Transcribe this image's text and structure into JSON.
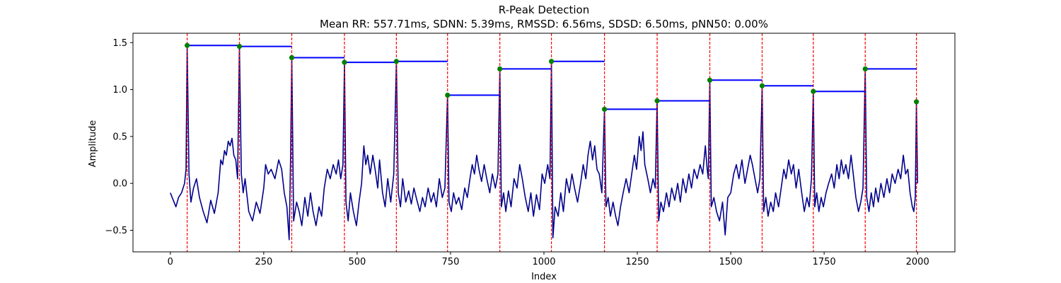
{
  "chart_data": {
    "type": "line",
    "title": "R-Peak Detection",
    "subtitle": "Mean RR: 557.71ms, SDNN: 5.39ms, RMSSD: 6.56ms, SDSD: 6.50ms, pNN50: 0.00%",
    "xlabel": "Index",
    "ylabel": "Amplitude",
    "xlim": [
      -100,
      2100
    ],
    "ylim": [
      -0.73,
      1.6
    ],
    "xticks": [
      0,
      250,
      500,
      750,
      1000,
      1250,
      1500,
      1750,
      2000
    ],
    "yticks": [
      -0.5,
      0.0,
      0.5,
      1.0,
      1.5
    ],
    "ytick_labels": [
      "−0.5",
      "0.0",
      "0.5",
      "1.0",
      "1.5"
    ],
    "grid": false,
    "colors": {
      "signal": "#00008b",
      "peak_lines": "#ff0000",
      "peak_markers": "#008000",
      "rr_segments": "#0000ff"
    },
    "peaks": {
      "x": [
        45,
        185,
        325,
        466,
        605,
        742,
        882,
        1020,
        1162,
        1303,
        1444,
        1584,
        1721,
        1860,
        1997
      ],
      "y": [
        1.47,
        1.46,
        1.34,
        1.29,
        1.3,
        0.94,
        1.22,
        1.3,
        0.79,
        0.88,
        1.1,
        1.04,
        0.98,
        1.22,
        0.87
      ]
    },
    "signal": [
      [
        0,
        -0.1
      ],
      [
        8,
        -0.18
      ],
      [
        15,
        -0.25
      ],
      [
        22,
        -0.15
      ],
      [
        30,
        -0.1
      ],
      [
        38,
        0.0
      ],
      [
        42,
        0.15
      ],
      [
        45,
        1.47
      ],
      [
        50,
        0.1
      ],
      [
        55,
        -0.2
      ],
      [
        62,
        -0.05
      ],
      [
        70,
        0.05
      ],
      [
        78,
        -0.15
      ],
      [
        88,
        -0.3
      ],
      [
        98,
        -0.42
      ],
      [
        108,
        -0.18
      ],
      [
        118,
        -0.32
      ],
      [
        128,
        -0.1
      ],
      [
        135,
        0.25
      ],
      [
        140,
        0.2
      ],
      [
        145,
        0.35
      ],
      [
        150,
        0.3
      ],
      [
        155,
        0.45
      ],
      [
        160,
        0.4
      ],
      [
        165,
        0.48
      ],
      [
        170,
        0.3
      ],
      [
        175,
        0.25
      ],
      [
        180,
        0.05
      ],
      [
        185,
        1.46
      ],
      [
        190,
        0.1
      ],
      [
        195,
        -0.1
      ],
      [
        200,
        0.05
      ],
      [
        210,
        -0.3
      ],
      [
        220,
        -0.4
      ],
      [
        230,
        -0.2
      ],
      [
        240,
        -0.32
      ],
      [
        250,
        -0.05
      ],
      [
        255,
        0.2
      ],
      [
        262,
        0.1
      ],
      [
        270,
        0.15
      ],
      [
        280,
        0.05
      ],
      [
        290,
        0.25
      ],
      [
        298,
        0.15
      ],
      [
        305,
        -0.1
      ],
      [
        312,
        -0.25
      ],
      [
        318,
        -0.6
      ],
      [
        322,
        0.3
      ],
      [
        325,
        1.34
      ],
      [
        330,
        -0.4
      ],
      [
        338,
        -0.2
      ],
      [
        345,
        -0.3
      ],
      [
        352,
        -0.45
      ],
      [
        360,
        -0.15
      ],
      [
        368,
        -0.35
      ],
      [
        375,
        -0.1
      ],
      [
        382,
        -0.3
      ],
      [
        390,
        -0.45
      ],
      [
        398,
        -0.25
      ],
      [
        405,
        -0.35
      ],
      [
        412,
        -0.05
      ],
      [
        420,
        0.15
      ],
      [
        428,
        0.05
      ],
      [
        436,
        0.2
      ],
      [
        444,
        0.1
      ],
      [
        450,
        0.25
      ],
      [
        456,
        0.05
      ],
      [
        462,
        0.2
      ],
      [
        466,
        1.29
      ],
      [
        470,
        -0.2
      ],
      [
        476,
        -0.4
      ],
      [
        482,
        -0.1
      ],
      [
        490,
        -0.3
      ],
      [
        498,
        -0.45
      ],
      [
        505,
        -0.2
      ],
      [
        512,
        0.0
      ],
      [
        518,
        0.4
      ],
      [
        523,
        0.2
      ],
      [
        528,
        0.3
      ],
      [
        535,
        0.1
      ],
      [
        542,
        0.3
      ],
      [
        548,
        0.15
      ],
      [
        555,
        -0.05
      ],
      [
        560,
        0.25
      ],
      [
        568,
        -0.1
      ],
      [
        575,
        -0.25
      ],
      [
        582,
        0.05
      ],
      [
        590,
        -0.2
      ],
      [
        598,
        0.1
      ],
      [
        605,
        1.3
      ],
      [
        610,
        -0.1
      ],
      [
        616,
        -0.25
      ],
      [
        622,
        0.05
      ],
      [
        630,
        -0.2
      ],
      [
        638,
        -0.08
      ],
      [
        645,
        -0.22
      ],
      [
        652,
        -0.05
      ],
      [
        660,
        -0.18
      ],
      [
        668,
        -0.3
      ],
      [
        675,
        -0.15
      ],
      [
        682,
        -0.25
      ],
      [
        690,
        -0.05
      ],
      [
        698,
        -0.2
      ],
      [
        705,
        -0.1
      ],
      [
        712,
        -0.25
      ],
      [
        720,
        0.05
      ],
      [
        728,
        -0.15
      ],
      [
        735,
        -0.05
      ],
      [
        742,
        0.94
      ],
      [
        746,
        -0.2
      ],
      [
        752,
        -0.3
      ],
      [
        758,
        -0.1
      ],
      [
        765,
        -0.22
      ],
      [
        772,
        -0.15
      ],
      [
        780,
        -0.28
      ],
      [
        788,
        -0.05
      ],
      [
        795,
        -0.15
      ],
      [
        802,
        0.05
      ],
      [
        808,
        0.2
      ],
      [
        814,
        0.1
      ],
      [
        820,
        0.3
      ],
      [
        826,
        0.15
      ],
      [
        833,
        0.02
      ],
      [
        840,
        0.2
      ],
      [
        847,
        0.05
      ],
      [
        855,
        -0.1
      ],
      [
        862,
        0.1
      ],
      [
        870,
        -0.05
      ],
      [
        877,
        0.1
      ],
      [
        882,
        1.22
      ],
      [
        886,
        -0.25
      ],
      [
        892,
        -0.1
      ],
      [
        898,
        -0.3
      ],
      [
        905,
        -0.08
      ],
      [
        912,
        -0.25
      ],
      [
        920,
        0.05
      ],
      [
        928,
        -0.05
      ],
      [
        935,
        0.2
      ],
      [
        942,
        0.05
      ],
      [
        950,
        -0.15
      ],
      [
        958,
        -0.3
      ],
      [
        965,
        -0.1
      ],
      [
        972,
        -0.35
      ],
      [
        980,
        -0.12
      ],
      [
        988,
        -0.28
      ],
      [
        995,
        0.1
      ],
      [
        1002,
        0.0
      ],
      [
        1010,
        0.2
      ],
      [
        1016,
        0.05
      ],
      [
        1020,
        1.3
      ],
      [
        1024,
        -0.58
      ],
      [
        1030,
        -0.25
      ],
      [
        1038,
        -0.35
      ],
      [
        1045,
        -0.1
      ],
      [
        1052,
        -0.3
      ],
      [
        1060,
        0.05
      ],
      [
        1068,
        -0.1
      ],
      [
        1075,
        0.1
      ],
      [
        1082,
        -0.05
      ],
      [
        1090,
        -0.2
      ],
      [
        1098,
        0.0
      ],
      [
        1105,
        0.2
      ],
      [
        1112,
        0.05
      ],
      [
        1118,
        0.3
      ],
      [
        1124,
        0.45
      ],
      [
        1130,
        0.25
      ],
      [
        1136,
        0.4
      ],
      [
        1142,
        0.15
      ],
      [
        1148,
        0.1
      ],
      [
        1155,
        -0.1
      ],
      [
        1162,
        0.79
      ],
      [
        1166,
        -0.25
      ],
      [
        1172,
        -0.15
      ],
      [
        1178,
        -0.35
      ],
      [
        1185,
        -0.2
      ],
      [
        1192,
        -0.35
      ],
      [
        1198,
        -0.45
      ],
      [
        1205,
        -0.25
      ],
      [
        1212,
        -0.1
      ],
      [
        1220,
        0.05
      ],
      [
        1228,
        -0.1
      ],
      [
        1235,
        0.1
      ],
      [
        1242,
        0.3
      ],
      [
        1248,
        0.15
      ],
      [
        1255,
        0.5
      ],
      [
        1260,
        0.35
      ],
      [
        1265,
        0.55
      ],
      [
        1270,
        0.2
      ],
      [
        1278,
        0.05
      ],
      [
        1285,
        -0.1
      ],
      [
        1292,
        0.05
      ],
      [
        1298,
        -0.05
      ],
      [
        1303,
        0.88
      ],
      [
        1307,
        -0.4
      ],
      [
        1313,
        -0.2
      ],
      [
        1320,
        -0.3
      ],
      [
        1328,
        -0.1
      ],
      [
        1335,
        -0.25
      ],
      [
        1342,
        -0.05
      ],
      [
        1350,
        -0.18
      ],
      [
        1358,
        0.0
      ],
      [
        1365,
        -0.2
      ],
      [
        1372,
        0.05
      ],
      [
        1380,
        -0.1
      ],
      [
        1388,
        0.1
      ],
      [
        1395,
        -0.05
      ],
      [
        1402,
        0.15
      ],
      [
        1410,
        0.05
      ],
      [
        1418,
        0.2
      ],
      [
        1425,
        0.1
      ],
      [
        1432,
        0.4
      ],
      [
        1437,
        0.15
      ],
      [
        1440,
        0.05
      ],
      [
        1444,
        1.1
      ],
      [
        1448,
        -0.25
      ],
      [
        1455,
        -0.15
      ],
      [
        1462,
        -0.3
      ],
      [
        1470,
        -0.4
      ],
      [
        1478,
        -0.2
      ],
      [
        1485,
        -0.55
      ],
      [
        1492,
        -0.15
      ],
      [
        1500,
        -0.1
      ],
      [
        1508,
        0.1
      ],
      [
        1515,
        0.2
      ],
      [
        1522,
        0.05
      ],
      [
        1530,
        0.25
      ],
      [
        1538,
        0.0
      ],
      [
        1545,
        0.15
      ],
      [
        1552,
        0.3
      ],
      [
        1558,
        0.2
      ],
      [
        1565,
        0.05
      ],
      [
        1572,
        -0.1
      ],
      [
        1578,
        0.05
      ],
      [
        1584,
        1.04
      ],
      [
        1588,
        -0.3
      ],
      [
        1594,
        -0.15
      ],
      [
        1600,
        -0.35
      ],
      [
        1607,
        -0.2
      ],
      [
        1614,
        -0.3
      ],
      [
        1620,
        -0.1
      ],
      [
        1628,
        -0.25
      ],
      [
        1635,
        -0.05
      ],
      [
        1642,
        0.15
      ],
      [
        1648,
        0.05
      ],
      [
        1655,
        0.25
      ],
      [
        1662,
        0.1
      ],
      [
        1668,
        0.2
      ],
      [
        1675,
        -0.05
      ],
      [
        1682,
        0.15
      ],
      [
        1690,
        -0.1
      ],
      [
        1697,
        -0.3
      ],
      [
        1704,
        -0.15
      ],
      [
        1710,
        -0.25
      ],
      [
        1716,
        0.05
      ],
      [
        1721,
        0.98
      ],
      [
        1725,
        -0.25
      ],
      [
        1730,
        -0.1
      ],
      [
        1736,
        -0.3
      ],
      [
        1742,
        -0.15
      ],
      [
        1748,
        -0.25
      ],
      [
        1755,
        -0.1
      ],
      [
        1762,
        0.0
      ],
      [
        1770,
        0.1
      ],
      [
        1777,
        -0.05
      ],
      [
        1784,
        0.2
      ],
      [
        1790,
        0.05
      ],
      [
        1796,
        0.25
      ],
      [
        1802,
        0.1
      ],
      [
        1808,
        0.2
      ],
      [
        1815,
        0.05
      ],
      [
        1822,
        0.3
      ],
      [
        1828,
        0.1
      ],
      [
        1835,
        -0.15
      ],
      [
        1842,
        -0.3
      ],
      [
        1848,
        -0.2
      ],
      [
        1854,
        -0.05
      ],
      [
        1860,
        1.22
      ],
      [
        1864,
        -0.15
      ],
      [
        1870,
        -0.3
      ],
      [
        1876,
        -0.1
      ],
      [
        1882,
        -0.25
      ],
      [
        1888,
        -0.05
      ],
      [
        1895,
        -0.2
      ],
      [
        1902,
        0.0
      ],
      [
        1910,
        -0.15
      ],
      [
        1918,
        0.05
      ],
      [
        1925,
        -0.1
      ],
      [
        1932,
        0.1
      ],
      [
        1940,
        0.0
      ],
      [
        1948,
        0.15
      ],
      [
        1955,
        0.05
      ],
      [
        1962,
        0.3
      ],
      [
        1968,
        0.1
      ],
      [
        1974,
        0.15
      ],
      [
        1980,
        -0.1
      ],
      [
        1986,
        -0.25
      ],
      [
        1990,
        -0.3
      ],
      [
        1994,
        -0.15
      ],
      [
        1997,
        0.87
      ],
      [
        2000,
        0.0
      ]
    ]
  }
}
